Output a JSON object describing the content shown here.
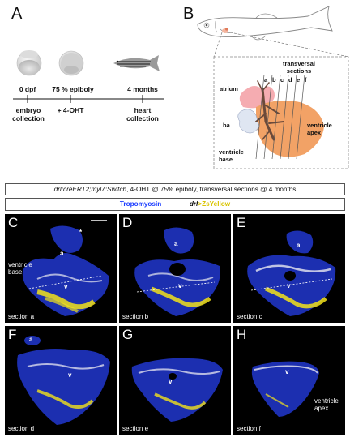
{
  "panels": {
    "a": "A",
    "b": "B",
    "c": "C",
    "d": "D",
    "e": "E",
    "f": "F",
    "g": "G",
    "h": "H"
  },
  "timeline": {
    "t0": "0 dpf",
    "t1": "75 % epiboly",
    "t2": "4 months",
    "e0": "embryo\ncollection",
    "e1": "+ 4-OHT",
    "e2": "heart\ncollection"
  },
  "heart_labels": {
    "transversal": "transversal\nsections",
    "letters": [
      "a",
      "b",
      "c",
      "d",
      "e",
      "f"
    ],
    "atrium": "atrium",
    "ba": "ba",
    "ventricle_apex": "ventricle\napex",
    "ventricle_base": "ventricle\nbase"
  },
  "banner": {
    "genotype": "drl:creERT2;myl7:Switch",
    "condition": ", 4-OHT @ 75% epiboly, transversal sections @ 4 months",
    "tropomyosin": "Tropomyosin",
    "drl_prefix": "drl",
    "zsyellow": ">ZsYellow"
  },
  "tiles": [
    {
      "letter": "C",
      "section": "section a",
      "marks": [
        "a",
        "v",
        "*"
      ],
      "extra": "ventricle\nbase"
    },
    {
      "letter": "D",
      "section": "section b",
      "marks": [
        "a",
        "v"
      ],
      "extra": ""
    },
    {
      "letter": "E",
      "section": "section c",
      "marks": [
        "a",
        "v"
      ],
      "extra": ""
    },
    {
      "letter": "F",
      "section": "section d",
      "marks": [
        "a",
        "v"
      ],
      "extra": ""
    },
    {
      "letter": "G",
      "section": "section e",
      "marks": [
        "v"
      ],
      "extra": ""
    },
    {
      "letter": "H",
      "section": "section f",
      "marks": [
        "v"
      ],
      "extra": "ventricle\napex"
    }
  ],
  "colors": {
    "tropomyosin": "#1a3cff",
    "zsyellow": "#f2e21a",
    "tissue_blue": "#1c2fb0",
    "tissue_white": "#e8e8f0",
    "atrium_pink": "#f4a3a8",
    "ventricle_orange": "#f2a266",
    "tree_brown": "#6b4a3a"
  }
}
